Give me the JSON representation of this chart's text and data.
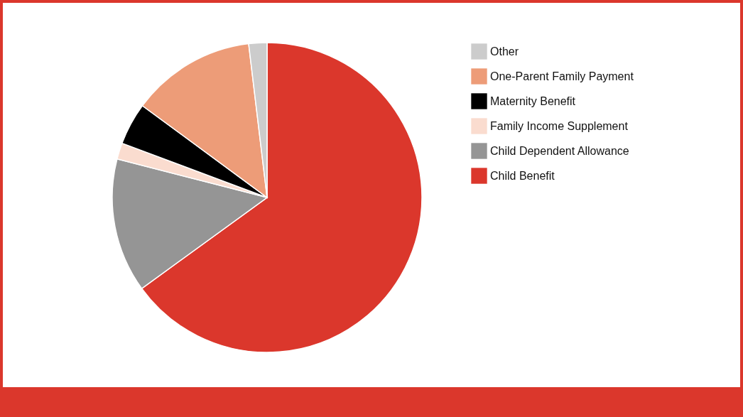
{
  "chart_data": {
    "type": "pie",
    "categories": [
      "Child Benefit",
      "Child Dependent Allowance",
      "Family Income Supplement",
      "Maternity Benefit",
      "One-Parent Family Payment",
      "Other"
    ],
    "values": [
      65,
      14,
      1.7,
      4.4,
      13,
      1.9
    ],
    "colors": [
      "#db372c",
      "#959595",
      "#fadccf",
      "#000000",
      "#ed9c78",
      "#cccccc"
    ],
    "legend": "top right"
  }
}
